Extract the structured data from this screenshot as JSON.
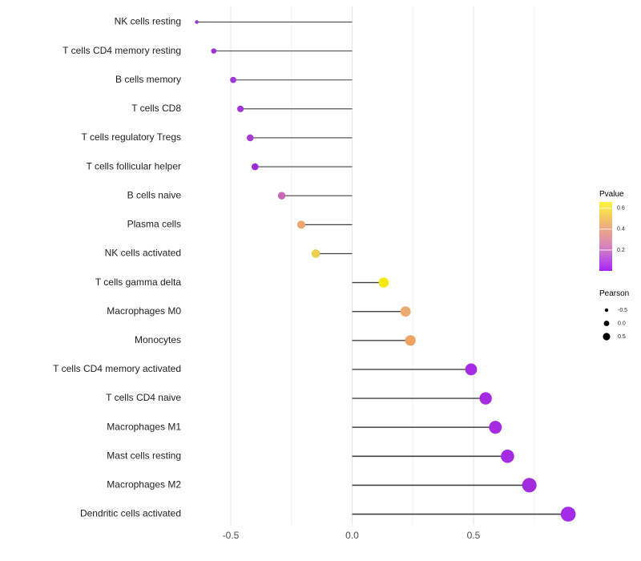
{
  "chart_data": {
    "type": "lollipop",
    "orientation": "horizontal",
    "title": "",
    "xlabel": "",
    "ylabel": "",
    "xlim": [
      -0.72,
      0.97
    ],
    "baseline": 0,
    "x_ticks": {
      "values": [
        -0.5,
        0.0,
        0.5
      ],
      "labels": [
        "-0.5",
        "0.0",
        "0.5"
      ]
    },
    "grid": {
      "major": [
        -0.5,
        0.0,
        0.5
      ],
      "minor": [
        -0.25,
        0.25,
        0.75
      ],
      "horizontal": false
    },
    "points": [
      {
        "label": "NK cells resting",
        "pearson": -0.64,
        "pvalue_approx": 0.08,
        "color": "#9B36CF",
        "radius": 2.3
      },
      {
        "label": "T cells CD4 memory resting",
        "pearson": -0.57,
        "pvalue_approx": 0.06,
        "color": "#9D30D8",
        "radius": 3.3
      },
      {
        "label": "B cells memory",
        "pearson": -0.49,
        "pvalue_approx": 0.08,
        "color": "#A138D6",
        "radius": 3.9
      },
      {
        "label": "T cells CD8",
        "pearson": -0.46,
        "pvalue_approx": 0.08,
        "color": "#A037D8",
        "radius": 4.1
      },
      {
        "label": "T cells regulatory  Tregs",
        "pearson": -0.42,
        "pvalue_approx": 0.1,
        "color": "#A83AD4",
        "radius": 4.3
      },
      {
        "label": "T cells follicular helper",
        "pearson": -0.4,
        "pvalue_approx": 0.06,
        "color": "#9C2BD8",
        "radius": 4.3
      },
      {
        "label": "B cells naive",
        "pearson": -0.29,
        "pvalue_approx": 0.25,
        "color": "#C766B4",
        "radius": 4.7
      },
      {
        "label": "Plasma cells",
        "pearson": -0.21,
        "pvalue_approx": 0.42,
        "color": "#EAA66E",
        "radius": 5.0
      },
      {
        "label": "NK cells activated",
        "pearson": -0.15,
        "pvalue_approx": 0.55,
        "color": "#EDD04E",
        "radius": 5.3
      },
      {
        "label": "T cells gamma delta",
        "pearson": 0.13,
        "pvalue_approx": 0.63,
        "color": "#F5E90B",
        "radius": 6.3
      },
      {
        "label": "Macrophages M0",
        "pearson": 0.22,
        "pvalue_approx": 0.42,
        "color": "#ECAB70",
        "radius": 6.4
      },
      {
        "label": "Monocytes",
        "pearson": 0.24,
        "pvalue_approx": 0.44,
        "color": "#EFA363",
        "radius": 6.6
      },
      {
        "label": "T cells CD4 memory activated",
        "pearson": 0.49,
        "pvalue_approx": 0.03,
        "color": "#A62BE3",
        "radius": 7.4
      },
      {
        "label": "T cells CD4 naive",
        "pearson": 0.55,
        "pvalue_approx": 0.02,
        "color": "#A52BE0",
        "radius": 7.7
      },
      {
        "label": "Macrophages M1",
        "pearson": 0.59,
        "pvalue_approx": 0.02,
        "color": "#A42BE0",
        "radius": 8.0
      },
      {
        "label": "Mast cells resting",
        "pearson": 0.64,
        "pvalue_approx": 0.01,
        "color": "#A52BE2",
        "radius": 8.3
      },
      {
        "label": "Macrophages M2",
        "pearson": 0.73,
        "pvalue_approx": 0.01,
        "color": "#A12BDD",
        "radius": 9.0
      },
      {
        "label": "Dendritic cells activated",
        "pearson": 0.89,
        "pvalue_approx": 0.01,
        "color": "#A42BE8",
        "radius": 9.3
      }
    ],
    "legend_pvalue": {
      "title": "Pvalue",
      "range": [
        0,
        0.66
      ],
      "ticks": [
        {
          "label": "0.6",
          "value": 0.6
        },
        {
          "label": "0.4",
          "value": 0.4
        },
        {
          "label": "0.2",
          "value": 0.2
        }
      ],
      "gradient_top_to_bottom": [
        {
          "offset": 0.0,
          "color": "#FBF43C"
        },
        {
          "offset": 0.1,
          "color": "#F9E44D"
        },
        {
          "offset": 0.25,
          "color": "#F3C167"
        },
        {
          "offset": 0.43,
          "color": "#E9A18C"
        },
        {
          "offset": 0.6,
          "color": "#DB8BB4"
        },
        {
          "offset": 0.72,
          "color": "#CC74CD"
        },
        {
          "offset": 0.87,
          "color": "#B84BE5"
        },
        {
          "offset": 1.0,
          "color": "#A723F5"
        }
      ]
    },
    "legend_pearson": {
      "title": "Pearson",
      "dot_color": "#000000",
      "items": [
        {
          "label": "-0.5",
          "radius": 2.2
        },
        {
          "label": "0.0",
          "radius": 3.4
        },
        {
          "label": "0.5",
          "radius": 4.6
        }
      ]
    },
    "colors": {
      "stick": "#404040",
      "grid_major": "#E4E4E4",
      "grid_minor": "#EFEFEF",
      "background": "#FFFFFF"
    }
  }
}
